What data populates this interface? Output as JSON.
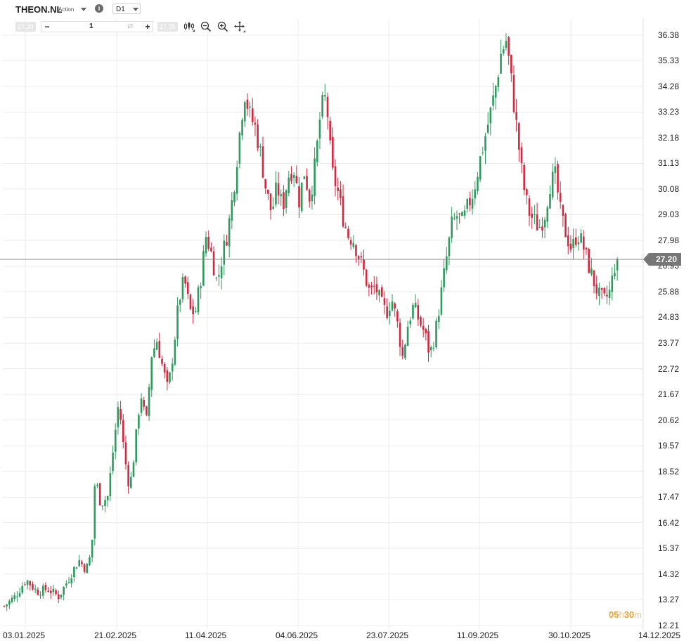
{
  "toolbar": {
    "symbol": "THEON.NL",
    "instrument_type": "Action",
    "info_icon": "i",
    "timeframe": "D1",
    "sell_price": "27.20",
    "buy_price": "27.35",
    "quantity": "1",
    "minus_label": "−",
    "plus_label": "+",
    "swap_icon": "⇄",
    "tools": [
      "candles-icon",
      "zoom-out-icon",
      "zoom-in-icon",
      "crosshair-icon"
    ]
  },
  "current_price_label": "27.20",
  "countdown": {
    "hours": "05",
    "hours_unit": "h",
    "minutes": "30",
    "minutes_unit": "m"
  },
  "colors": {
    "up": "#2e9a5e",
    "down": "#d3283f",
    "price_line": "#888888",
    "grid": "#ececec"
  },
  "chart_data": {
    "type": "candlestick",
    "title": "",
    "xlabel": "",
    "ylabel": "",
    "current_price": 27.2,
    "ylim": [
      12.21,
      37.43
    ],
    "y_ticks": [
      "36.38",
      "35.33",
      "34.28",
      "33.23",
      "32.18",
      "31.13",
      "30.08",
      "29.03",
      "27.98",
      "26.93",
      "25.88",
      "24.83",
      "23.77",
      "22.72",
      "21.67",
      "20.62",
      "19.57",
      "18.52",
      "17.47",
      "16.42",
      "15.37",
      "14.32",
      "13.27",
      "12.21"
    ],
    "x_ticks": [
      "03.01.2025",
      "21.02.2025",
      "11.04.2025",
      "04.06.2025",
      "23.07.2025",
      "11.09.2025",
      "30.10.2025",
      "14.12.2025"
    ],
    "grid": true,
    "close_path": [
      [
        0,
        13.0
      ],
      [
        6,
        13.4
      ],
      [
        12,
        14.1
      ],
      [
        18,
        13.6
      ],
      [
        24,
        13.7
      ],
      [
        30,
        13.4
      ],
      [
        36,
        14.2
      ],
      [
        41,
        14.9
      ],
      [
        45,
        14.5
      ],
      [
        48,
        15.2
      ],
      [
        50,
        18.3
      ],
      [
        53,
        17.2
      ],
      [
        57,
        17.5
      ],
      [
        60,
        19.5
      ],
      [
        63,
        21.4
      ],
      [
        66,
        19.2
      ],
      [
        69,
        17.8
      ],
      [
        72,
        19.6
      ],
      [
        75,
        21.8
      ],
      [
        78,
        20.4
      ],
      [
        81,
        23.3
      ],
      [
        84,
        23.9
      ],
      [
        87,
        22.8
      ],
      [
        90,
        21.8
      ],
      [
        93,
        23.5
      ],
      [
        96,
        25.5
      ],
      [
        99,
        26.4
      ],
      [
        102,
        25.1
      ],
      [
        105,
        25.0
      ],
      [
        108,
        26.4
      ],
      [
        111,
        28.2
      ],
      [
        114,
        27.4
      ],
      [
        117,
        26.2
      ],
      [
        120,
        27.4
      ],
      [
        123,
        28.4
      ],
      [
        126,
        30.0
      ],
      [
        129,
        32.1
      ],
      [
        132,
        34.1
      ],
      [
        135,
        33.1
      ],
      [
        138,
        32.6
      ],
      [
        141,
        31.5
      ],
      [
        144,
        30.0
      ],
      [
        147,
        29.1
      ],
      [
        150,
        30.2
      ],
      [
        153,
        29.3
      ],
      [
        156,
        30.6
      ],
      [
        159,
        31.0
      ],
      [
        162,
        29.6
      ],
      [
        165,
        30.8
      ],
      [
        168,
        29.7
      ],
      [
        171,
        31.1
      ],
      [
        174,
        33.3
      ],
      [
        177,
        33.9
      ],
      [
        180,
        30.8
      ],
      [
        183,
        30.1
      ],
      [
        186,
        29.0
      ],
      [
        189,
        28.2
      ],
      [
        192,
        28.0
      ],
      [
        195,
        27.3
      ],
      [
        198,
        26.6
      ],
      [
        201,
        25.8
      ],
      [
        204,
        26.1
      ],
      [
        207,
        25.4
      ],
      [
        210,
        25.0
      ],
      [
        213,
        25.6
      ],
      [
        216,
        24.6
      ],
      [
        219,
        23.2
      ],
      [
        222,
        24.6
      ],
      [
        225,
        25.3
      ],
      [
        228,
        24.7
      ],
      [
        231,
        24.2
      ],
      [
        234,
        23.3
      ],
      [
        237,
        24.2
      ],
      [
        240,
        25.7
      ],
      [
        243,
        27.2
      ],
      [
        246,
        28.6
      ],
      [
        249,
        29.0
      ],
      [
        252,
        28.7
      ],
      [
        255,
        29.4
      ],
      [
        258,
        30.0
      ],
      [
        261,
        31.1
      ],
      [
        264,
        32.1
      ],
      [
        267,
        33.1
      ],
      [
        270,
        34.2
      ],
      [
        273,
        35.6
      ],
      [
        276,
        36.2
      ],
      [
        279,
        34.3
      ],
      [
        282,
        32.4
      ],
      [
        285,
        30.4
      ],
      [
        288,
        29.2
      ],
      [
        291,
        28.8
      ],
      [
        294,
        28.5
      ],
      [
        297,
        29.0
      ],
      [
        300,
        30.3
      ],
      [
        303,
        30.6
      ],
      [
        306,
        29.0
      ],
      [
        309,
        28.2
      ],
      [
        312,
        27.6
      ],
      [
        315,
        28.3
      ],
      [
        318,
        27.8
      ],
      [
        321,
        27.0
      ],
      [
        324,
        26.3
      ],
      [
        327,
        25.7
      ],
      [
        330,
        25.5
      ],
      [
        333,
        25.9
      ],
      [
        336,
        27.1
      ],
      [
        337,
        27.2
      ]
    ],
    "candle_count": 238
  }
}
